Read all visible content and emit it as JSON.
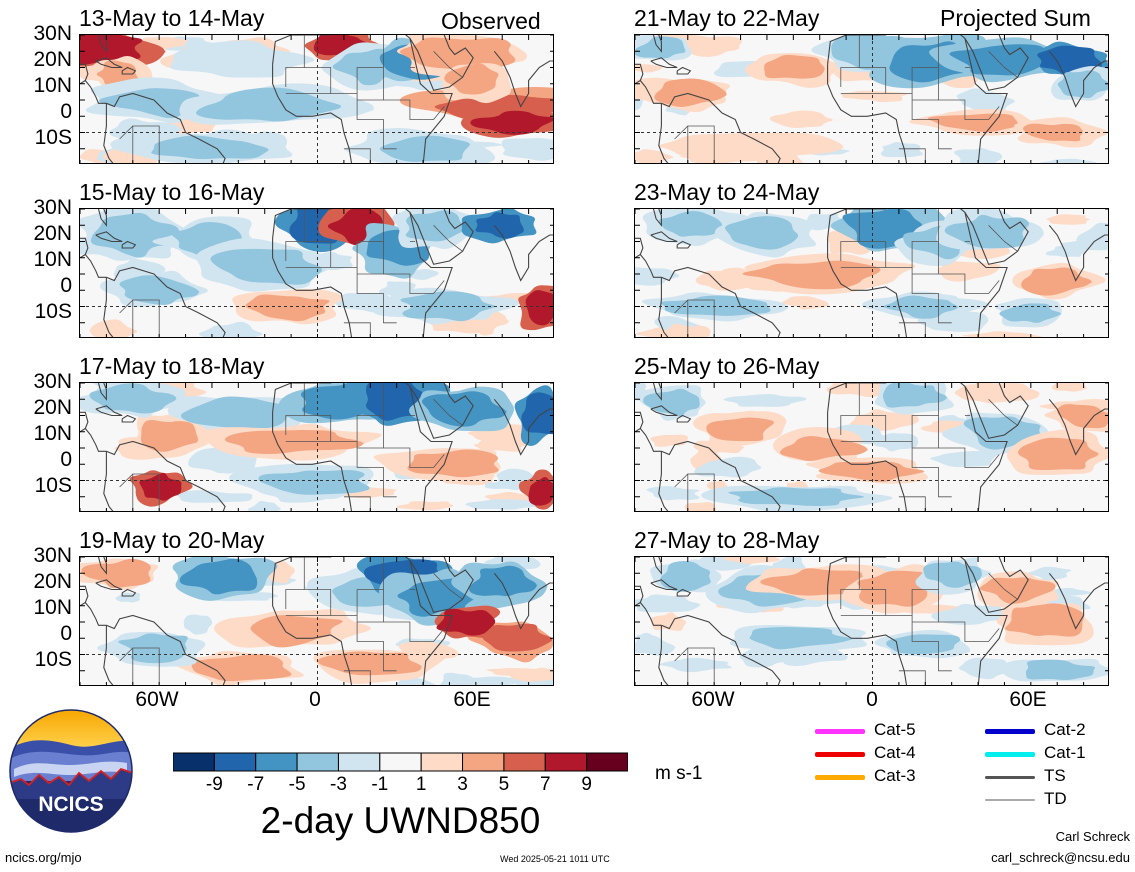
{
  "header": {
    "observed_label": "Observed",
    "projected_label": "Projected Sum"
  },
  "panels": [
    {
      "title": "13-May to 14-May",
      "group": "observed"
    },
    {
      "title": "15-May to 16-May",
      "group": "observed"
    },
    {
      "title": "17-May to 18-May",
      "group": "observed"
    },
    {
      "title": "19-May to 20-May",
      "group": "observed"
    },
    {
      "title": "21-May to 22-May",
      "group": "projected"
    },
    {
      "title": "23-May to 24-May",
      "group": "projected"
    },
    {
      "title": "25-May to 26-May",
      "group": "projected"
    },
    {
      "title": "27-May to 28-May",
      "group": "projected"
    }
  ],
  "lat_labels": [
    "30N",
    "20N",
    "10N",
    "0",
    "10S"
  ],
  "lon_labels": [
    "60W",
    "0",
    "60E"
  ],
  "colorbar": {
    "ticks": [
      "-9",
      "-7",
      "-5",
      "-3",
      "-1",
      "1",
      "3",
      "5",
      "7",
      "9"
    ],
    "colors": [
      "#08306b",
      "#2166ac",
      "#4393c3",
      "#92c5de",
      "#d1e5f0",
      "#f7f7f7",
      "#fddbc7",
      "#f4a582",
      "#d6604d",
      "#b2182b",
      "#67001f"
    ],
    "units": "m s-1",
    "title": "2-day UWND850"
  },
  "legend": [
    {
      "label": "Cat-5",
      "color": "#ff33ff"
    },
    {
      "label": "Cat-4",
      "color": "#ee0000"
    },
    {
      "label": "Cat-3",
      "color": "#ffaa00"
    },
    {
      "label": "Cat-2",
      "color": "#0000cc"
    },
    {
      "label": "Cat-1",
      "color": "#00eeee"
    },
    {
      "label": "TS",
      "color": "#555555"
    },
    {
      "label": "TD",
      "color": "#aaaaaa"
    }
  ],
  "logo": {
    "text": "NCICS"
  },
  "footer": {
    "url": "ncics.org/mjo",
    "timestamp": "Wed 2025-05-21 1011 UTC",
    "author": "Carl Schreck",
    "email": "carl_schreck@ncsu.edu"
  }
}
